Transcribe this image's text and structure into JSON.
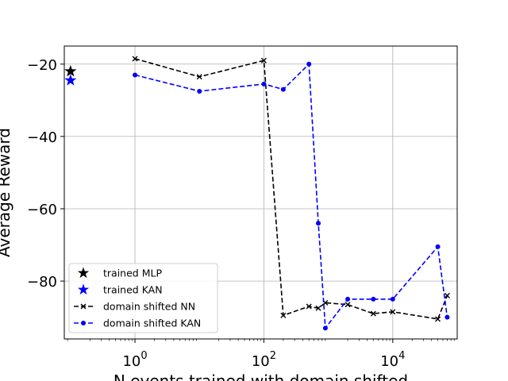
{
  "chart_data": {
    "type": "line",
    "xlabel": "N events trained with domain shifted",
    "ylabel": "Average Reward",
    "xscale": "log",
    "xlim": [
      0.08,
      100000
    ],
    "ylim": [
      -96,
      -15
    ],
    "x_ticks": [
      {
        "value": 1,
        "base": "10",
        "exp": "0"
      },
      {
        "value": 100,
        "base": "10",
        "exp": "2"
      },
      {
        "value": 10000,
        "base": "10",
        "exp": "4"
      }
    ],
    "y_ticks": [
      {
        "value": -20,
        "label": "−20"
      },
      {
        "value": -40,
        "label": "−40"
      },
      {
        "value": -60,
        "label": "−60"
      },
      {
        "value": -80,
        "label": "−80"
      }
    ],
    "grid": true,
    "legend_position": "lower-left",
    "series": [
      {
        "name": "trained MLP",
        "kind": "star",
        "color": "#000000",
        "points": [
          {
            "x": 0.1,
            "y": -22
          }
        ]
      },
      {
        "name": "trained KAN",
        "kind": "star",
        "color": "#0000ff",
        "points": [
          {
            "x": 0.1,
            "y": -24.5
          }
        ]
      },
      {
        "name": "domain shifted NN",
        "kind": "line-x",
        "color": "#000000",
        "points": [
          {
            "x": 1,
            "y": -18.5
          },
          {
            "x": 10,
            "y": -23.5
          },
          {
            "x": 100,
            "y": -19
          },
          {
            "x": 200,
            "y": -89.5
          },
          {
            "x": 500,
            "y": -87
          },
          {
            "x": 700,
            "y": -87.5
          },
          {
            "x": 900,
            "y": -86
          },
          {
            "x": 2000,
            "y": -86.5
          },
          {
            "x": 5000,
            "y": -89
          },
          {
            "x": 10000,
            "y": -88.5
          },
          {
            "x": 50000,
            "y": -90.5
          },
          {
            "x": 70000,
            "y": -84
          }
        ]
      },
      {
        "name": "domain shifted KAN",
        "kind": "line-dot",
        "color": "#0000ff",
        "points": [
          {
            "x": 1,
            "y": -23
          },
          {
            "x": 10,
            "y": -27.5
          },
          {
            "x": 100,
            "y": -25.5
          },
          {
            "x": 200,
            "y": -27
          },
          {
            "x": 500,
            "y": -20
          },
          {
            "x": 700,
            "y": -64
          },
          {
            "x": 900,
            "y": -93
          },
          {
            "x": 2000,
            "y": -85
          },
          {
            "x": 5000,
            "y": -85
          },
          {
            "x": 10000,
            "y": -85
          },
          {
            "x": 50000,
            "y": -70.5
          },
          {
            "x": 70000,
            "y": -90
          }
        ]
      }
    ]
  }
}
